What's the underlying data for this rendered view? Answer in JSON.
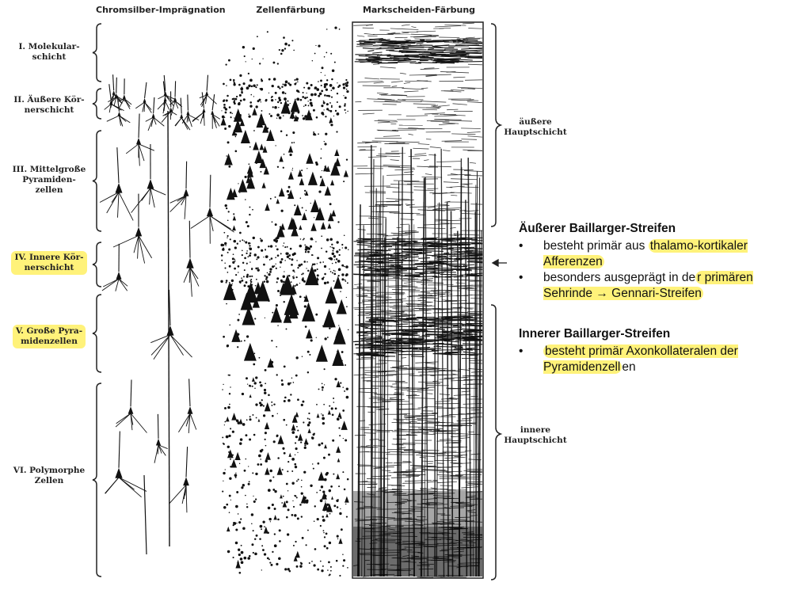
{
  "columns": [
    "Chromsilber-Imprägnation",
    "Zellenfärbung",
    "Markscheiden-Färbung"
  ],
  "layers": [
    {
      "num": "I.",
      "line1": "Molekular-",
      "line2": "schicht",
      "highlight": false
    },
    {
      "num": "II.",
      "line1": "Äußere Kör-",
      "line2": "nerschicht",
      "highlight": false
    },
    {
      "num": "III.",
      "line1": "Mittelgroße",
      "line2": "Pyramiden-",
      "line3": "zellen",
      "highlight": false
    },
    {
      "num": "IV.",
      "line1": "Innere Kör-",
      "line2": "nerschicht",
      "highlight": true
    },
    {
      "num": "V.",
      "line1": "Große Pyra-",
      "line2": "midenzellen",
      "highlight": true
    },
    {
      "num": "VI.",
      "line1": "Polymorphe",
      "line2": "Zellen",
      "highlight": false
    }
  ],
  "main_layers": {
    "outer_line1": "äußere",
    "outer_line2": "Hauptschicht",
    "inner_line1": "innere",
    "inner_line2": "Hauptschicht"
  },
  "arrow_symbol": "➛",
  "notes": {
    "outer": {
      "title": "Äußerer Baillarger-Streifen",
      "b1_plain": "besteht primär aus ",
      "b1_hl": "thalamo-kortikaler Afferenzen",
      "b2_plain": "besonders ausgeprägt in de",
      "b2_hl": "r primären Sehrinde → Gennari-Streifen"
    },
    "inner": {
      "title": "Innerer Baillarger-Streifen",
      "b1_hl": "besteht primär Axonkollateralen der Pyramidenzell",
      "b1_plain": "en"
    }
  },
  "highlight_color": "#fff27a"
}
